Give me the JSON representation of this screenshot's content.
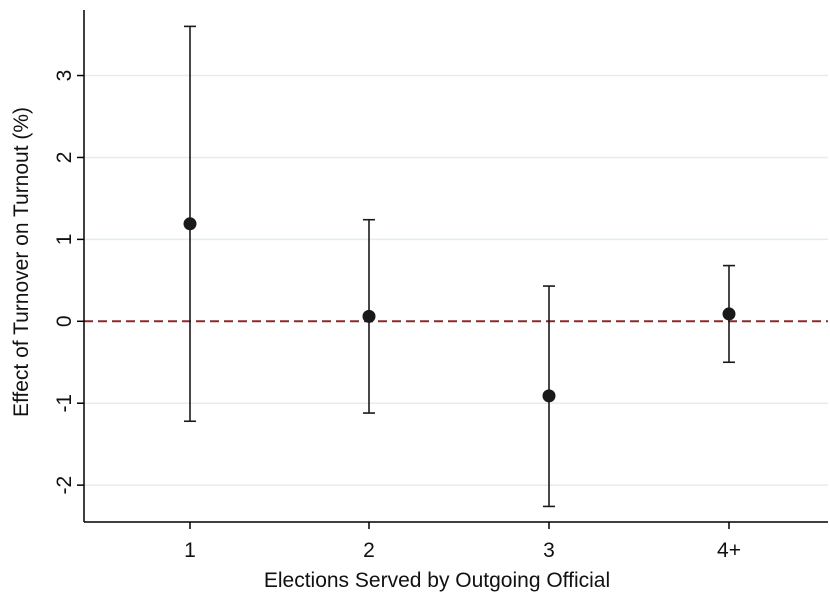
{
  "chart_data": {
    "type": "scatter",
    "title": "",
    "xlabel": "Elections Served by Outgoing Official",
    "ylabel": "Effect of Turnover on Turnout (%)",
    "categories": [
      "1",
      "2",
      "3",
      "4+"
    ],
    "points": [
      {
        "category": "1",
        "estimate": 1.19,
        "ci_low": -1.22,
        "ci_high": 3.6
      },
      {
        "category": "2",
        "estimate": 0.06,
        "ci_low": -1.12,
        "ci_high": 1.24
      },
      {
        "category": "3",
        "estimate": -0.91,
        "ci_low": -2.26,
        "ci_high": 0.43
      },
      {
        "category": "4+",
        "estimate": 0.09,
        "ci_low": -0.5,
        "ci_high": 0.68
      }
    ],
    "yticks": [
      -2,
      -1,
      0,
      1,
      2,
      3
    ],
    "ytick_labels": [
      "-2",
      "-1",
      "0",
      "1",
      "2",
      "3"
    ],
    "ylim": [
      -2.45,
      3.8
    ],
    "reference_line": {
      "y": 0,
      "style": "dashed",
      "color": "#8b2a2a"
    },
    "grid": "horizontal",
    "colors": {
      "grid": "#e4ecef",
      "marker": "#1a1a1a",
      "errorbar": "#1a1a1a",
      "axis": "#000000"
    }
  }
}
